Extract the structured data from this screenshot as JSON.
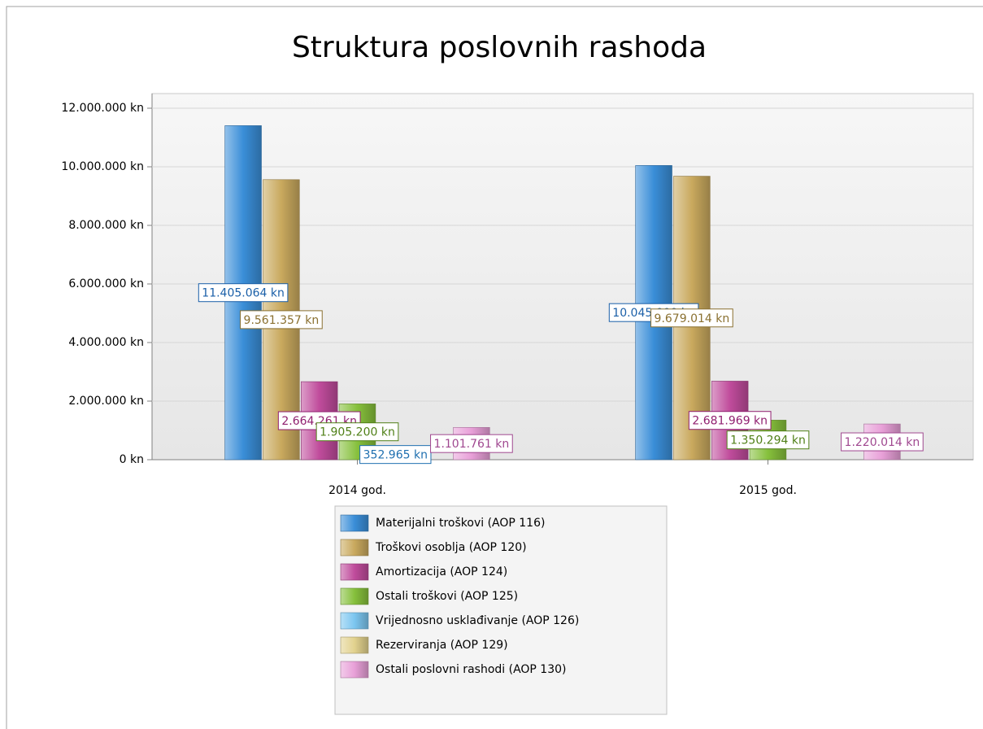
{
  "chart_data": {
    "type": "bar",
    "title": "Struktura poslovnih rashoda",
    "categories": [
      "2014 god.",
      "2015 god."
    ],
    "series": [
      {
        "name": "Materijalni troškovi (AOP 116)",
        "color": "#3a8ed8",
        "label_color": "#1a5fa8",
        "values": [
          11405064,
          10045000
        ],
        "value_labels": [
          "11.405.064 kn",
          "10.045.000 kn"
        ]
      },
      {
        "name": "Troškovi osoblja (AOP 120)",
        "color": "#c9a95e",
        "label_color": "#8a7030",
        "values": [
          9561357,
          9679014
        ],
        "value_labels": [
          "9.561.357 kn",
          "9.679.014 kn"
        ]
      },
      {
        "name": "Amortizacija (AOP 124)",
        "color": "#c04c9c",
        "label_color": "#902070",
        "values": [
          2664261,
          2681969
        ],
        "value_labels": [
          "2.664.261 kn",
          "2.681.969 kn"
        ]
      },
      {
        "name": "Ostali troškovi (AOP 125)",
        "color": "#86c03c",
        "label_color": "#508018",
        "values": [
          1905200,
          1350294
        ],
        "value_labels": [
          "1.905.200 kn",
          "1.350.294 kn"
        ]
      },
      {
        "name": "Vrijednosno usklađivanje (AOP 126)",
        "color": "#7cc6f0",
        "label_color": "#2070b0",
        "values": [
          352965,
          null
        ],
        "value_labels": [
          "352.965 kn",
          null
        ]
      },
      {
        "name": "Rezerviranja (AOP 129)",
        "color": "#e2d28e",
        "label_color": "#908040",
        "values": [
          null,
          null
        ],
        "value_labels": [
          null,
          null
        ]
      },
      {
        "name": "Ostali poslovni rashodi (AOP 130)",
        "color": "#e8a0d8",
        "label_color": "#a04890",
        "values": [
          1101761,
          1220014
        ],
        "value_labels": [
          "1.101.761 kn",
          "1.220.014 kn"
        ]
      }
    ],
    "ylim": [
      0,
      12500000
    ],
    "yticks": [
      {
        "value": 0,
        "label": "0 kn"
      },
      {
        "value": 2000000,
        "label": "2.000.000 kn"
      },
      {
        "value": 4000000,
        "label": "4.000.000 kn"
      },
      {
        "value": 6000000,
        "label": "6.000.000 kn"
      },
      {
        "value": 8000000,
        "label": "8.000.000 kn"
      },
      {
        "value": 10000000,
        "label": "10.000.000 kn"
      },
      {
        "value": 12000000,
        "label": "12.000.000 kn"
      }
    ],
    "grid": true,
    "legend": "bottom"
  }
}
